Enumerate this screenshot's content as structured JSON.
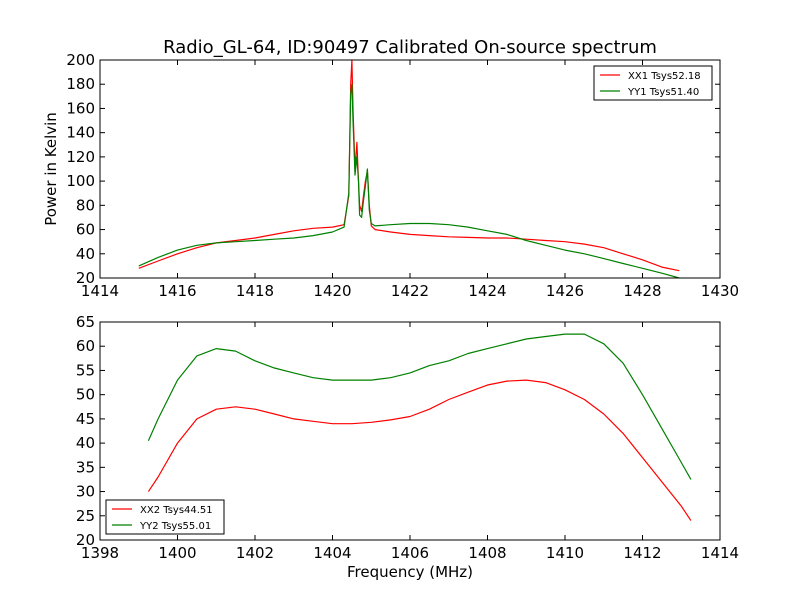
{
  "chart_data": [
    {
      "type": "line",
      "title": "Radio_GL-64, ID:90497 Calibrated On-source spectrum",
      "xlabel": "",
      "ylabel": "Power in Kelvin",
      "xlim": [
        1414,
        1430
      ],
      "ylim": [
        20,
        200
      ],
      "xticks": [
        1414,
        1416,
        1418,
        1420,
        1422,
        1424,
        1426,
        1428,
        1430
      ],
      "yticks": [
        20,
        40,
        60,
        80,
        100,
        120,
        140,
        160,
        180,
        200
      ],
      "legend_position": "top-right",
      "grid": false,
      "series": [
        {
          "name": "XX1 Tsys52.18",
          "color": "#ff0000",
          "x": [
            1415.0,
            1415.5,
            1416.0,
            1416.5,
            1417.0,
            1417.5,
            1418.0,
            1418.5,
            1419.0,
            1419.5,
            1420.0,
            1420.3,
            1420.42,
            1420.47,
            1420.5,
            1420.53,
            1420.58,
            1420.63,
            1420.67,
            1420.7,
            1420.75,
            1420.8,
            1420.85,
            1420.9,
            1420.95,
            1421.0,
            1421.1,
            1421.5,
            1422.0,
            1422.5,
            1423.0,
            1423.5,
            1424.0,
            1424.5,
            1425.0,
            1425.5,
            1426.0,
            1426.5,
            1427.0,
            1427.5,
            1428.0,
            1428.5,
            1428.95
          ],
          "y": [
            28,
            34,
            40,
            45,
            49,
            51,
            53,
            56,
            59,
            61,
            62,
            64,
            88,
            180,
            200,
            160,
            110,
            132,
            100,
            80,
            75,
            88,
            100,
            108,
            80,
            63,
            60,
            58,
            56,
            55,
            54,
            53.5,
            53,
            53,
            52,
            51,
            50,
            48,
            45,
            40,
            35,
            29,
            26
          ]
        },
        {
          "name": "YY1 Tsys51.40",
          "color": "#008000",
          "x": [
            1415.0,
            1415.5,
            1416.0,
            1416.5,
            1417.0,
            1417.5,
            1418.0,
            1418.5,
            1419.0,
            1419.5,
            1420.0,
            1420.3,
            1420.42,
            1420.47,
            1420.5,
            1420.53,
            1420.58,
            1420.63,
            1420.67,
            1420.7,
            1420.75,
            1420.8,
            1420.85,
            1420.9,
            1420.95,
            1421.0,
            1421.1,
            1421.5,
            1422.0,
            1422.5,
            1423.0,
            1423.5,
            1424.0,
            1424.5,
            1425.0,
            1425.5,
            1426.0,
            1426.5,
            1427.0,
            1427.5,
            1428.0,
            1428.5,
            1428.95
          ],
          "y": [
            30,
            37,
            43,
            47,
            49,
            50,
            51,
            52,
            53,
            55,
            58,
            62,
            90,
            172,
            180,
            150,
            105,
            120,
            100,
            72,
            70,
            84,
            96,
            110,
            76,
            65,
            63,
            64,
            65,
            65,
            64,
            62,
            59,
            56,
            51,
            47,
            43,
            40,
            36,
            32,
            28,
            24,
            20
          ]
        }
      ]
    },
    {
      "type": "line",
      "title": "",
      "xlabel": "Frequency (MHz)",
      "ylabel": "",
      "xlim": [
        1398,
        1414
      ],
      "ylim": [
        20,
        65
      ],
      "xticks": [
        1398,
        1400,
        1402,
        1404,
        1406,
        1408,
        1410,
        1412,
        1414
      ],
      "yticks": [
        20,
        25,
        30,
        35,
        40,
        45,
        50,
        55,
        60,
        65
      ],
      "legend_position": "bottom-left",
      "grid": false,
      "series": [
        {
          "name": "XX2 Tsys44.51",
          "color": "#ff0000",
          "x": [
            1399.25,
            1399.5,
            1400.0,
            1400.5,
            1401.0,
            1401.5,
            1402.0,
            1402.5,
            1403.0,
            1403.5,
            1404.0,
            1404.5,
            1405.0,
            1405.5,
            1406.0,
            1406.5,
            1407.0,
            1407.5,
            1408.0,
            1408.5,
            1409.0,
            1409.5,
            1410.0,
            1410.5,
            1411.0,
            1411.5,
            1412.0,
            1412.5,
            1413.0,
            1413.25
          ],
          "y": [
            30,
            33,
            40,
            45,
            47,
            47.5,
            47,
            46,
            45,
            44.5,
            44,
            44,
            44.3,
            44.8,
            45.5,
            47,
            49,
            50.5,
            52,
            52.8,
            53,
            52.5,
            51,
            49,
            46,
            42,
            37,
            32,
            27,
            24
          ]
        },
        {
          "name": "YY2 Tsys55.01",
          "color": "#008000",
          "x": [
            1399.25,
            1399.5,
            1400.0,
            1400.5,
            1401.0,
            1401.5,
            1402.0,
            1402.5,
            1403.0,
            1403.5,
            1404.0,
            1404.5,
            1405.0,
            1405.5,
            1406.0,
            1406.5,
            1407.0,
            1407.5,
            1408.0,
            1408.5,
            1409.0,
            1409.5,
            1410.0,
            1410.5,
            1411.0,
            1411.5,
            1412.0,
            1412.5,
            1413.0,
            1413.25
          ],
          "y": [
            40.5,
            45,
            53,
            58,
            59.5,
            59,
            57,
            55.5,
            54.5,
            53.5,
            53,
            53,
            53,
            53.5,
            54.5,
            56,
            57,
            58.5,
            59.5,
            60.5,
            61.5,
            62,
            62.5,
            62.5,
            60.5,
            56.5,
            50,
            43,
            36,
            32.5
          ]
        }
      ]
    }
  ]
}
